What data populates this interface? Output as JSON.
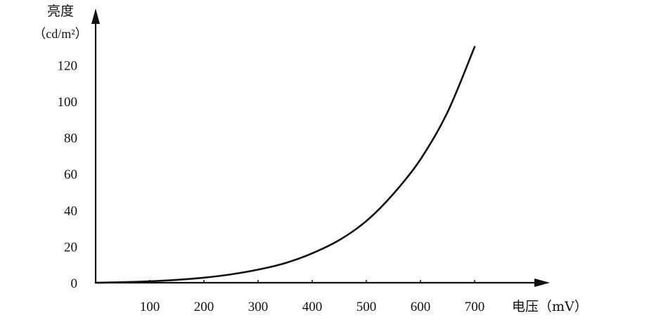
{
  "chart_data": {
    "type": "line",
    "title": "",
    "ylabel": "亮度",
    "ylabel_unit": "（cd/m²）",
    "xlabel": "电压（mV）",
    "xlim": [
      0,
      740
    ],
    "ylim": [
      0,
      130
    ],
    "xticks": [
      100,
      200,
      300,
      400,
      500,
      600,
      700
    ],
    "yticks": [
      0,
      20,
      40,
      60,
      80,
      100,
      120
    ],
    "grid": false,
    "legend": "none",
    "series": [
      {
        "x": [
          0,
          50,
          100,
          150,
          200,
          250,
          300,
          350,
          400,
          450,
          500,
          550,
          600,
          650,
          700
        ],
        "y": [
          0,
          0.3,
          0.8,
          1.6,
          2.8,
          4.6,
          7.2,
          10.8,
          16.2,
          23.5,
          34,
          49,
          68,
          94,
          130
        ]
      }
    ],
    "colors": {
      "line": "#111111",
      "axis": "#111111",
      "background": "#ffffff"
    }
  }
}
